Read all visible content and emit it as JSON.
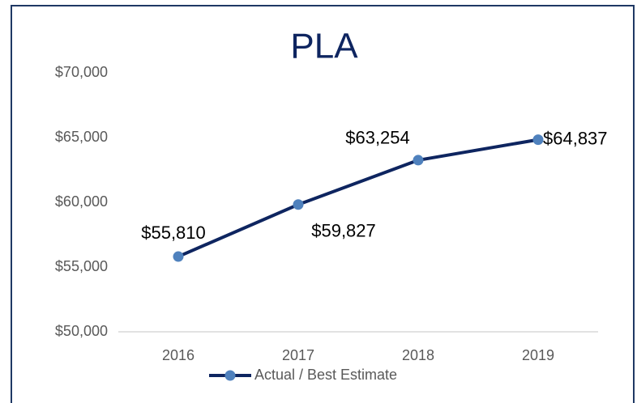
{
  "chart_data": {
    "type": "line",
    "title": "PLA",
    "categories": [
      "2016",
      "2017",
      "2018",
      "2019"
    ],
    "series": [
      {
        "name": "Actual / Best Estimate",
        "color": "#0e2560",
        "marker_color": "#4f81bd",
        "values": [
          55810,
          59827,
          63254,
          64837
        ],
        "value_labels": [
          "$55,810",
          "$59,827",
          "$63,254",
          "$64,837"
        ]
      }
    ],
    "ylim": [
      50000,
      70000
    ],
    "yticks": [
      {
        "value": 50000,
        "label": "$50,000"
      },
      {
        "value": 55000,
        "label": "$55,000"
      },
      {
        "value": 60000,
        "label": "$60,000"
      },
      {
        "value": 65000,
        "label": "$65,000"
      },
      {
        "value": 70000,
        "label": "$70,000"
      }
    ],
    "grid": false,
    "legend": "bottom"
  }
}
